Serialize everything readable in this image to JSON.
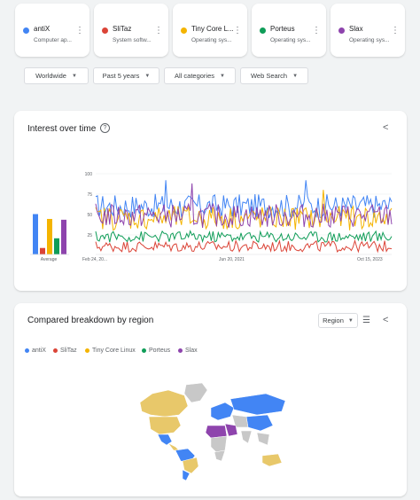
{
  "terms": [
    {
      "name": "antiX",
      "subtitle": "Computer ap...",
      "color": "#4285f4"
    },
    {
      "name": "SliTaz",
      "subtitle": "System softw...",
      "color": "#db4437"
    },
    {
      "name": "Tiny Core L...",
      "subtitle": "Operating sys...",
      "color": "#f4b400"
    },
    {
      "name": "Porteus",
      "subtitle": "Operating sys...",
      "color": "#0f9d58"
    },
    {
      "name": "Slax",
      "subtitle": "Operating sys...",
      "color": "#8e44ad"
    }
  ],
  "filters": {
    "region": "Worldwide",
    "time": "Past 5 years",
    "category": "All categories",
    "search_type": "Web Search"
  },
  "interest": {
    "title": "Interest over time",
    "average_label": "Average",
    "x_ticks": [
      "Feb 24, 20...",
      "Jun 20, 2021",
      "Oct 15, 2023"
    ],
    "y_ticks": [
      "100",
      "75",
      "50",
      "25"
    ]
  },
  "region": {
    "title": "Compared breakdown by region",
    "dropdown": "Region",
    "legend": [
      "antiX",
      "SliTaz",
      "Tiny Core Linux",
      "Porteus",
      "Slax"
    ]
  },
  "icons": {
    "kebab": "more-vert-icon",
    "share": "share-icon",
    "help": "help-icon",
    "list": "list-icon",
    "dropdown": "caret-down-icon"
  },
  "chart_data": {
    "type": "line",
    "x_range": [
      "2019-02-24",
      "2024-02-18"
    ],
    "ylim": [
      0,
      100
    ],
    "series": [
      {
        "name": "antiX",
        "average": 50,
        "level": 60
      },
      {
        "name": "SliTaz",
        "average": 8,
        "level": 10
      },
      {
        "name": "Tiny Core Linux",
        "average": 44,
        "level": 45
      },
      {
        "name": "Porteus",
        "average": 20,
        "level": 22
      },
      {
        "name": "Slax",
        "average": 43,
        "level": 48
      }
    ]
  }
}
